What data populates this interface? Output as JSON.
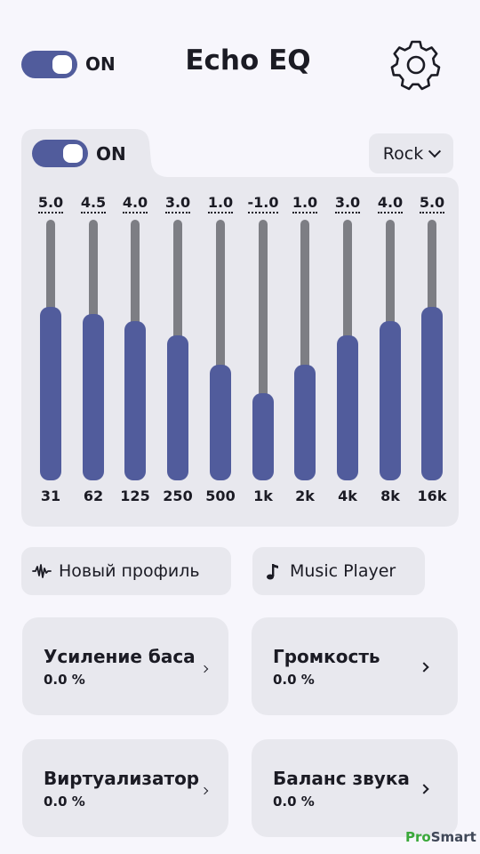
{
  "header": {
    "master_toggle": {
      "label": "ON",
      "on": true
    },
    "title": "Echo EQ",
    "settings_icon": "gear-icon"
  },
  "equalizer": {
    "toggle": {
      "label": "ON",
      "on": true
    },
    "preset": "Rock",
    "max_gain": 5,
    "min_gain": -5,
    "bands": [
      {
        "freq": "31",
        "gain": "5.0"
      },
      {
        "freq": "62",
        "gain": "4.5"
      },
      {
        "freq": "125",
        "gain": "4.0"
      },
      {
        "freq": "250",
        "gain": "3.0"
      },
      {
        "freq": "500",
        "gain": "1.0"
      },
      {
        "freq": "1k",
        "gain": "-1.0"
      },
      {
        "freq": "2k",
        "gain": "1.0"
      },
      {
        "freq": "4k",
        "gain": "3.0"
      },
      {
        "freq": "8k",
        "gain": "4.0"
      },
      {
        "freq": "16k",
        "gain": "5.0"
      }
    ]
  },
  "chips": {
    "new_profile": {
      "label": "Новый профиль",
      "icon": "waveform-icon"
    },
    "music_player": {
      "label": "Music Player",
      "icon": "music-note-icon"
    }
  },
  "cards": {
    "bass": {
      "title": "Усиление баса",
      "value": "0.0 %"
    },
    "volume": {
      "title": "Громкость",
      "value": "0.0 %"
    },
    "virtualizer": {
      "title": "Виртуализатор",
      "value": "0.0 %"
    },
    "balance": {
      "title": "Баланс звука",
      "value": "0.0 %"
    }
  },
  "watermark": {
    "part1": "Pro",
    "part2": "Smart"
  },
  "colors": {
    "accent": "#515c9c",
    "panel": "#e8e8ee",
    "track": "#7d7e84",
    "background": "#f7f6fc"
  }
}
